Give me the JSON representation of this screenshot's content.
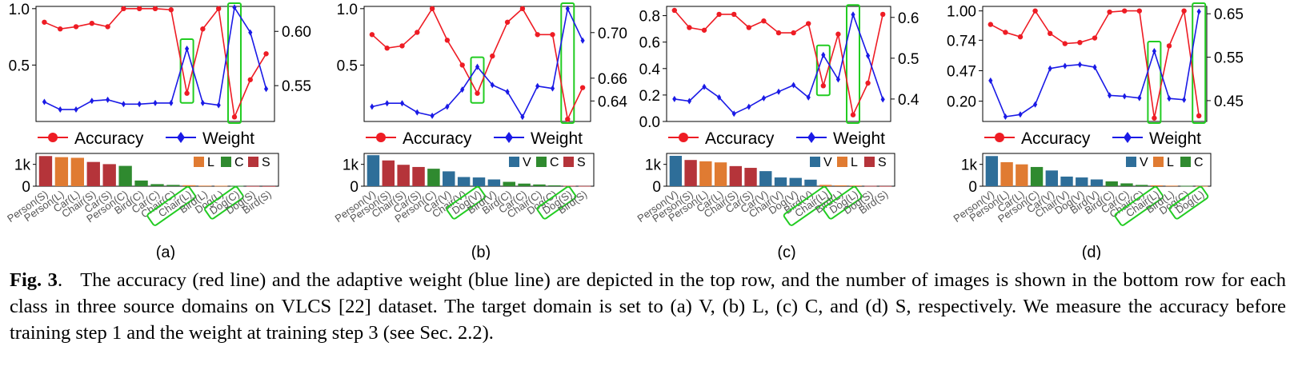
{
  "caption": {
    "label": "Fig. 3",
    "sep": ".",
    "text": "The accuracy (red line) and the adaptive weight (blue line) are depicted in the top row, and the number of images is shown in the bottom row for each class in three source domains on VLCS [22] dataset. The target domain is set to (a) V, (b) L, (c) C, and (d) S, respectively. We measure the accuracy before training step 1 and the weight at training step 3 (see Sec. 2.2)."
  },
  "colors": {
    "accuracy": "#ee1c24",
    "weight": "#1a1ae6",
    "highlight": "#22cc22",
    "V": "#2e6e99",
    "L": "#e07b32",
    "C": "#2f8a2f",
    "S": "#b5343a"
  },
  "legend": {
    "accuracy": "Accuracy",
    "weight": "Weight"
  },
  "chart_data": [
    {
      "panel": "(a)",
      "type": "line",
      "categories": [
        "Person(S)",
        "Person(L)",
        "Car(L)",
        "Chair(S)",
        "Car(S)",
        "Person(C)",
        "Bird(C)",
        "Car(C)",
        "Chair(C)",
        "Chair(L)",
        "Bird(L)",
        "Dog(L)",
        "Dog(C)",
        "Dog(S)",
        "Bird(S)"
      ],
      "highlight": [
        9,
        12
      ],
      "y_left": {
        "ticks": [
          0.5,
          1.0
        ],
        "tick_labels": [
          "0.5",
          "1.0"
        ],
        "range": [
          0.0,
          1.02
        ]
      },
      "y_right": {
        "ticks": [
          0.55,
          0.6
        ],
        "tick_labels": [
          "0.55",
          "0.60"
        ],
        "range": [
          0.517,
          0.623
        ]
      },
      "series": [
        {
          "name": "Accuracy",
          "axis": "left",
          "values": [
            0.88,
            0.82,
            0.84,
            0.87,
            0.84,
            1.0,
            1.0,
            1.0,
            0.99,
            0.25,
            0.82,
            1.0,
            0.04,
            0.37,
            0.6
          ]
        },
        {
          "name": "Weight",
          "axis": "right",
          "values": [
            0.535,
            0.528,
            0.528,
            0.536,
            0.537,
            0.533,
            0.533,
            0.534,
            0.534,
            0.584,
            0.534,
            0.532,
            0.622,
            0.599,
            0.547
          ]
        }
      ],
      "counts": {
        "type": "bar",
        "y_ticks": [
          0,
          1000
        ],
        "y_tick_labels": [
          "0",
          "1k"
        ],
        "ylim": [
          0,
          1500
        ],
        "legend": [
          "L",
          "C",
          "S"
        ],
        "domains": [
          "S",
          "L",
          "L",
          "S",
          "S",
          "C",
          "C",
          "C",
          "C",
          "L",
          "L",
          "L",
          "C",
          "S",
          "S"
        ],
        "values": [
          1380,
          1330,
          1300,
          1110,
          1010,
          930,
          260,
          95,
          60,
          45,
          25,
          20,
          15,
          8,
          5
        ]
      }
    },
    {
      "panel": "(b)",
      "type": "line",
      "categories": [
        "Person(V)",
        "Person(S)",
        "Chair(S)",
        "Car(S)",
        "Person(C)",
        "Car(V)",
        "Chair(V)",
        "Dog(V)",
        "Bird(V)",
        "Bird(C)",
        "Car(C)",
        "Chair(C)",
        "Dog(C)",
        "Dog(S)",
        "Bird(S)"
      ],
      "highlight": [
        7,
        13
      ],
      "y_left": {
        "ticks": [
          0.5,
          1.0
        ],
        "tick_labels": [
          "0.5",
          "1.0"
        ],
        "range": [
          0.0,
          1.02
        ]
      },
      "y_right": {
        "ticks": [
          0.64,
          0.66,
          0.7
        ],
        "tick_labels": [
          "0.64",
          "0.66",
          "0.70"
        ],
        "range": [
          0.622,
          0.723
        ]
      },
      "series": [
        {
          "name": "Accuracy",
          "axis": "left",
          "values": [
            0.77,
            0.65,
            0.67,
            0.79,
            1.0,
            0.72,
            0.5,
            0.25,
            0.58,
            0.88,
            1.0,
            0.77,
            0.77,
            0.02,
            0.3
          ]
        },
        {
          "name": "Weight",
          "axis": "right",
          "values": [
            0.635,
            0.638,
            0.638,
            0.63,
            0.627,
            0.635,
            0.65,
            0.67,
            0.654,
            0.648,
            0.626,
            0.653,
            0.651,
            0.721,
            0.693
          ]
        }
      ],
      "counts": {
        "type": "bar",
        "y_ticks": [
          0,
          1000
        ],
        "y_tick_labels": [
          "0",
          "1k"
        ],
        "ylim": [
          0,
          1500
        ],
        "legend": [
          "V",
          "C",
          "S"
        ],
        "domains": [
          "V",
          "S",
          "S",
          "S",
          "C",
          "V",
          "V",
          "V",
          "V",
          "C",
          "C",
          "C",
          "C",
          "S",
          "S"
        ],
        "values": [
          1420,
          1180,
          980,
          880,
          800,
          680,
          420,
          400,
          310,
          200,
          120,
          80,
          40,
          20,
          10
        ]
      }
    },
    {
      "panel": "(c)",
      "type": "line",
      "categories": [
        "Person(V)",
        "Person(S)",
        "Person(L)",
        "Car(L)",
        "Chair(S)",
        "Car(S)",
        "Car(V)",
        "Chair(V)",
        "Dog(V)",
        "Bird(V)",
        "Chair(L)",
        "Bird(L)",
        "Dog(L)",
        "Dog(S)",
        "Bird(S)"
      ],
      "highlight": [
        10,
        12
      ],
      "y_left": {
        "ticks": [
          0.0,
          0.2,
          0.4,
          0.6,
          0.8
        ],
        "tick_labels": [
          "0.0",
          "0.2",
          "0.4",
          "0.6",
          "0.8"
        ],
        "range": [
          0.0,
          0.87
        ]
      },
      "y_right": {
        "ticks": [
          0.4,
          0.5,
          0.6
        ],
        "tick_labels": [
          "0.4",
          "0.5",
          "0.6"
        ],
        "range": [
          0.345,
          0.627
        ]
      },
      "series": [
        {
          "name": "Accuracy",
          "axis": "left",
          "values": [
            0.84,
            0.71,
            0.69,
            0.81,
            0.81,
            0.71,
            0.76,
            0.67,
            0.67,
            0.74,
            0.27,
            0.66,
            0.05,
            0.29,
            0.81
          ]
        },
        {
          "name": "Weight",
          "axis": "right",
          "values": [
            0.4,
            0.395,
            0.43,
            0.404,
            0.364,
            0.381,
            0.402,
            0.418,
            0.434,
            0.404,
            0.508,
            0.448,
            0.607,
            0.506,
            0.399
          ]
        }
      ],
      "counts": {
        "type": "bar",
        "y_ticks": [
          0,
          1000
        ],
        "y_tick_labels": [
          "0",
          "1k"
        ],
        "ylim": [
          0,
          1500
        ],
        "legend": [
          "V",
          "L",
          "S"
        ],
        "domains": [
          "V",
          "S",
          "L",
          "L",
          "S",
          "S",
          "V",
          "V",
          "V",
          "V",
          "L",
          "L",
          "L",
          "S",
          "S"
        ],
        "values": [
          1390,
          1200,
          1140,
          1090,
          920,
          840,
          690,
          400,
          380,
          300,
          60,
          40,
          30,
          15,
          8
        ]
      }
    },
    {
      "panel": "(d)",
      "type": "line",
      "categories": [
        "Person(V)",
        "Person(L)",
        "Car(L)",
        "Person(C)",
        "Car(V)",
        "Chair(V)",
        "Dog(V)",
        "Bird(V)",
        "Bird(C)",
        "Car(C)",
        "Chair(C)",
        "Chair(L)",
        "Bird(L)",
        "Dog(C)",
        "Dog(L)"
      ],
      "highlight": [
        11,
        14
      ],
      "y_left": {
        "ticks": [
          0.2,
          0.47,
          0.74,
          1.0
        ],
        "tick_labels": [
          "0.20",
          "0.47",
          "0.74",
          "1.00"
        ],
        "range": [
          0.02,
          1.04
        ]
      },
      "y_right": {
        "ticks": [
          0.45,
          0.55,
          0.65
        ],
        "tick_labels": [
          "0.45",
          "0.55",
          "0.65"
        ],
        "range": [
          0.402,
          0.667
        ]
      },
      "series": [
        {
          "name": "Accuracy",
          "axis": "left",
          "values": [
            0.88,
            0.81,
            0.77,
            1.0,
            0.8,
            0.71,
            0.72,
            0.76,
            0.99,
            1.0,
            1.0,
            0.05,
            0.69,
            1.0,
            0.07
          ]
        },
        {
          "name": "Weight",
          "axis": "right",
          "values": [
            0.496,
            0.413,
            0.418,
            0.441,
            0.524,
            0.53,
            0.533,
            0.527,
            0.462,
            0.46,
            0.456,
            0.564,
            0.455,
            0.452,
            0.655
          ]
        }
      ],
      "counts": {
        "type": "bar",
        "y_ticks": [
          0,
          1000
        ],
        "y_tick_labels": [
          "0",
          "1k"
        ],
        "ylim": [
          0,
          1500
        ],
        "legend": [
          "V",
          "L",
          "C"
        ],
        "domains": [
          "V",
          "L",
          "L",
          "C",
          "V",
          "V",
          "V",
          "V",
          "C",
          "C",
          "C",
          "L",
          "L",
          "C",
          "L"
        ],
        "values": [
          1380,
          1100,
          1000,
          880,
          720,
          440,
          400,
          310,
          220,
          130,
          60,
          40,
          25,
          15,
          8
        ]
      }
    }
  ]
}
